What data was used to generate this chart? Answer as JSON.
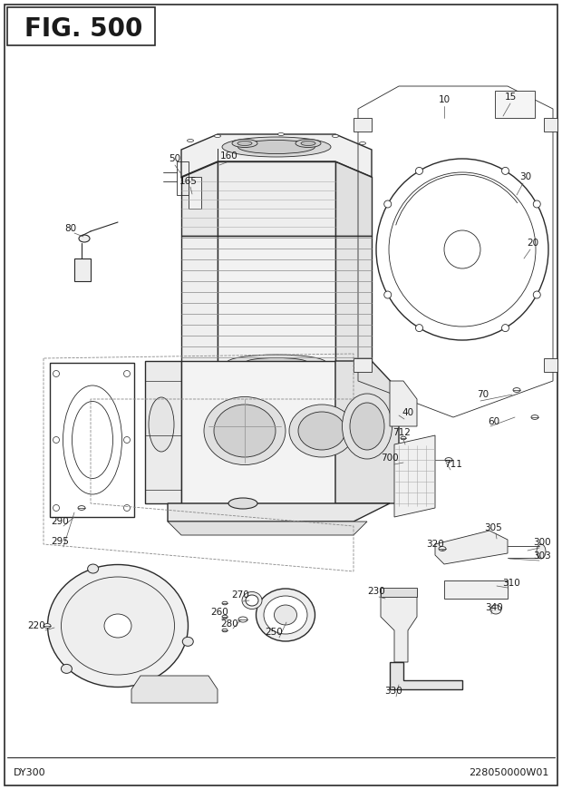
{
  "title": "FIG. 500",
  "footer_left": "DY300",
  "footer_right": "228050000W01",
  "bg_color": "#ffffff",
  "border_color": "#2a2a2a",
  "text_color": "#1a1a1a",
  "fig_width": 6.2,
  "fig_height": 8.71,
  "title_fontsize": 20,
  "footer_fontsize": 8,
  "label_fontsize": 7.5
}
